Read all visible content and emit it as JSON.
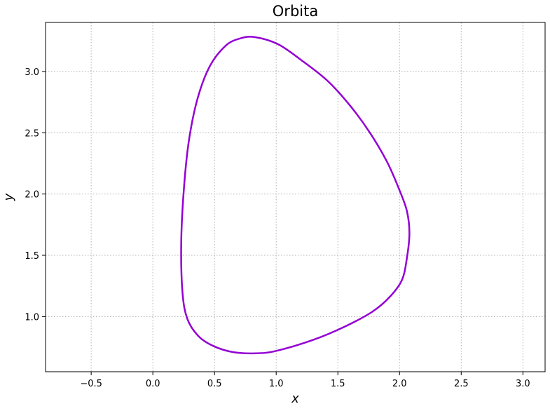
{
  "chart_data": {
    "type": "line",
    "title": "Orbita",
    "xlabel": "x",
    "ylabel": "y",
    "xlim": [
      -0.87,
      3.18
    ],
    "ylim": [
      0.55,
      3.4
    ],
    "grid": true,
    "x_ticks": [
      -0.5,
      0.0,
      0.5,
      1.0,
      1.5,
      2.0,
      2.5,
      3.0
    ],
    "x_tick_labels": [
      "−0.5",
      "0.0",
      "0.5",
      "1.0",
      "1.5",
      "2.0",
      "2.5",
      "3.0"
    ],
    "y_ticks": [
      1.0,
      1.5,
      2.0,
      2.5,
      3.0
    ],
    "y_tick_labels": [
      "1.0",
      "1.5",
      "2.0",
      "2.5",
      "3.0"
    ],
    "series": [
      {
        "color": "#9400D3",
        "x": [
          0.83,
          1.02,
          1.22,
          1.42,
          1.6,
          1.76,
          1.9,
          2.0,
          2.06,
          2.08,
          2.06,
          2.02,
          1.92,
          1.78,
          1.56,
          1.3,
          1.0,
          0.83,
          0.65,
          0.49,
          0.37,
          0.28,
          0.24,
          0.23,
          0.25,
          0.29,
          0.36,
          0.46,
          0.59,
          0.71,
          0.83
        ],
        "y": [
          3.28,
          3.22,
          3.08,
          2.92,
          2.72,
          2.5,
          2.26,
          2.03,
          1.86,
          1.68,
          1.48,
          1.3,
          1.16,
          1.04,
          0.92,
          0.81,
          0.72,
          0.7,
          0.71,
          0.76,
          0.84,
          0.98,
          1.2,
          1.6,
          2.02,
          2.42,
          2.77,
          3.04,
          3.21,
          3.27,
          3.28
        ]
      }
    ]
  }
}
